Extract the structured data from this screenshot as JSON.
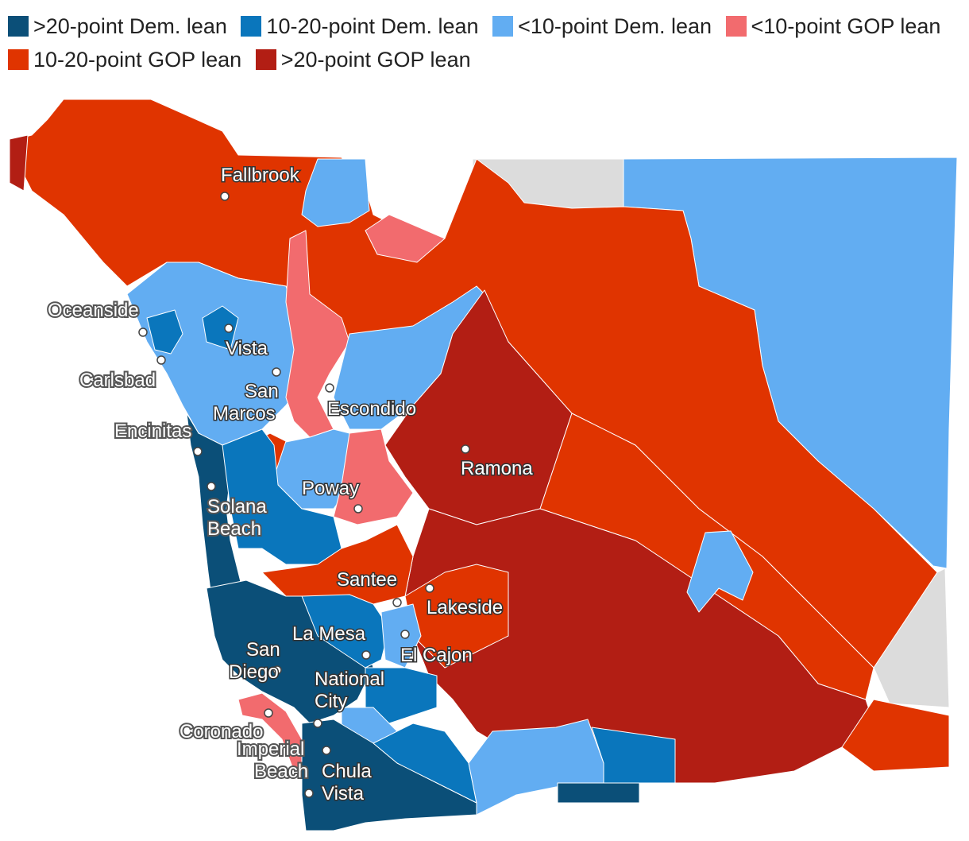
{
  "legend": {
    "items": [
      {
        "label": ">20-point Dem. lean",
        "color": "#0b4f78"
      },
      {
        "label": "10-20-point Dem. lean",
        "color": "#0a76bc"
      },
      {
        "label": "<10-point Dem. lean",
        "color": "#62adf2"
      },
      {
        "label": "<10-point GOP lean",
        "color": "#f26b6e"
      },
      {
        "label": "10-20-point GOP lean",
        "color": "#e03400"
      },
      {
        "label": ">20-point GOP lean",
        "color": "#b21e14"
      }
    ]
  },
  "colors": {
    "no_data": "#dcdcdc",
    "background": "#ffffff"
  },
  "cities": [
    {
      "name": "Fallbrook"
    },
    {
      "name": "Oceanside"
    },
    {
      "name": "Vista"
    },
    {
      "name": "Carlsbad"
    },
    {
      "name": "San Marcos"
    },
    {
      "name": "Escondido"
    },
    {
      "name": "Encinitas"
    },
    {
      "name": "Ramona"
    },
    {
      "name": "Solana Beach"
    },
    {
      "name": "Poway"
    },
    {
      "name": "Santee"
    },
    {
      "name": "Lakeside"
    },
    {
      "name": "La Mesa"
    },
    {
      "name": "San Diego"
    },
    {
      "name": "El Cajon"
    },
    {
      "name": "National City"
    },
    {
      "name": "Coronado"
    },
    {
      "name": "Imperial Beach"
    },
    {
      "name": "Chula Vista"
    }
  ]
}
